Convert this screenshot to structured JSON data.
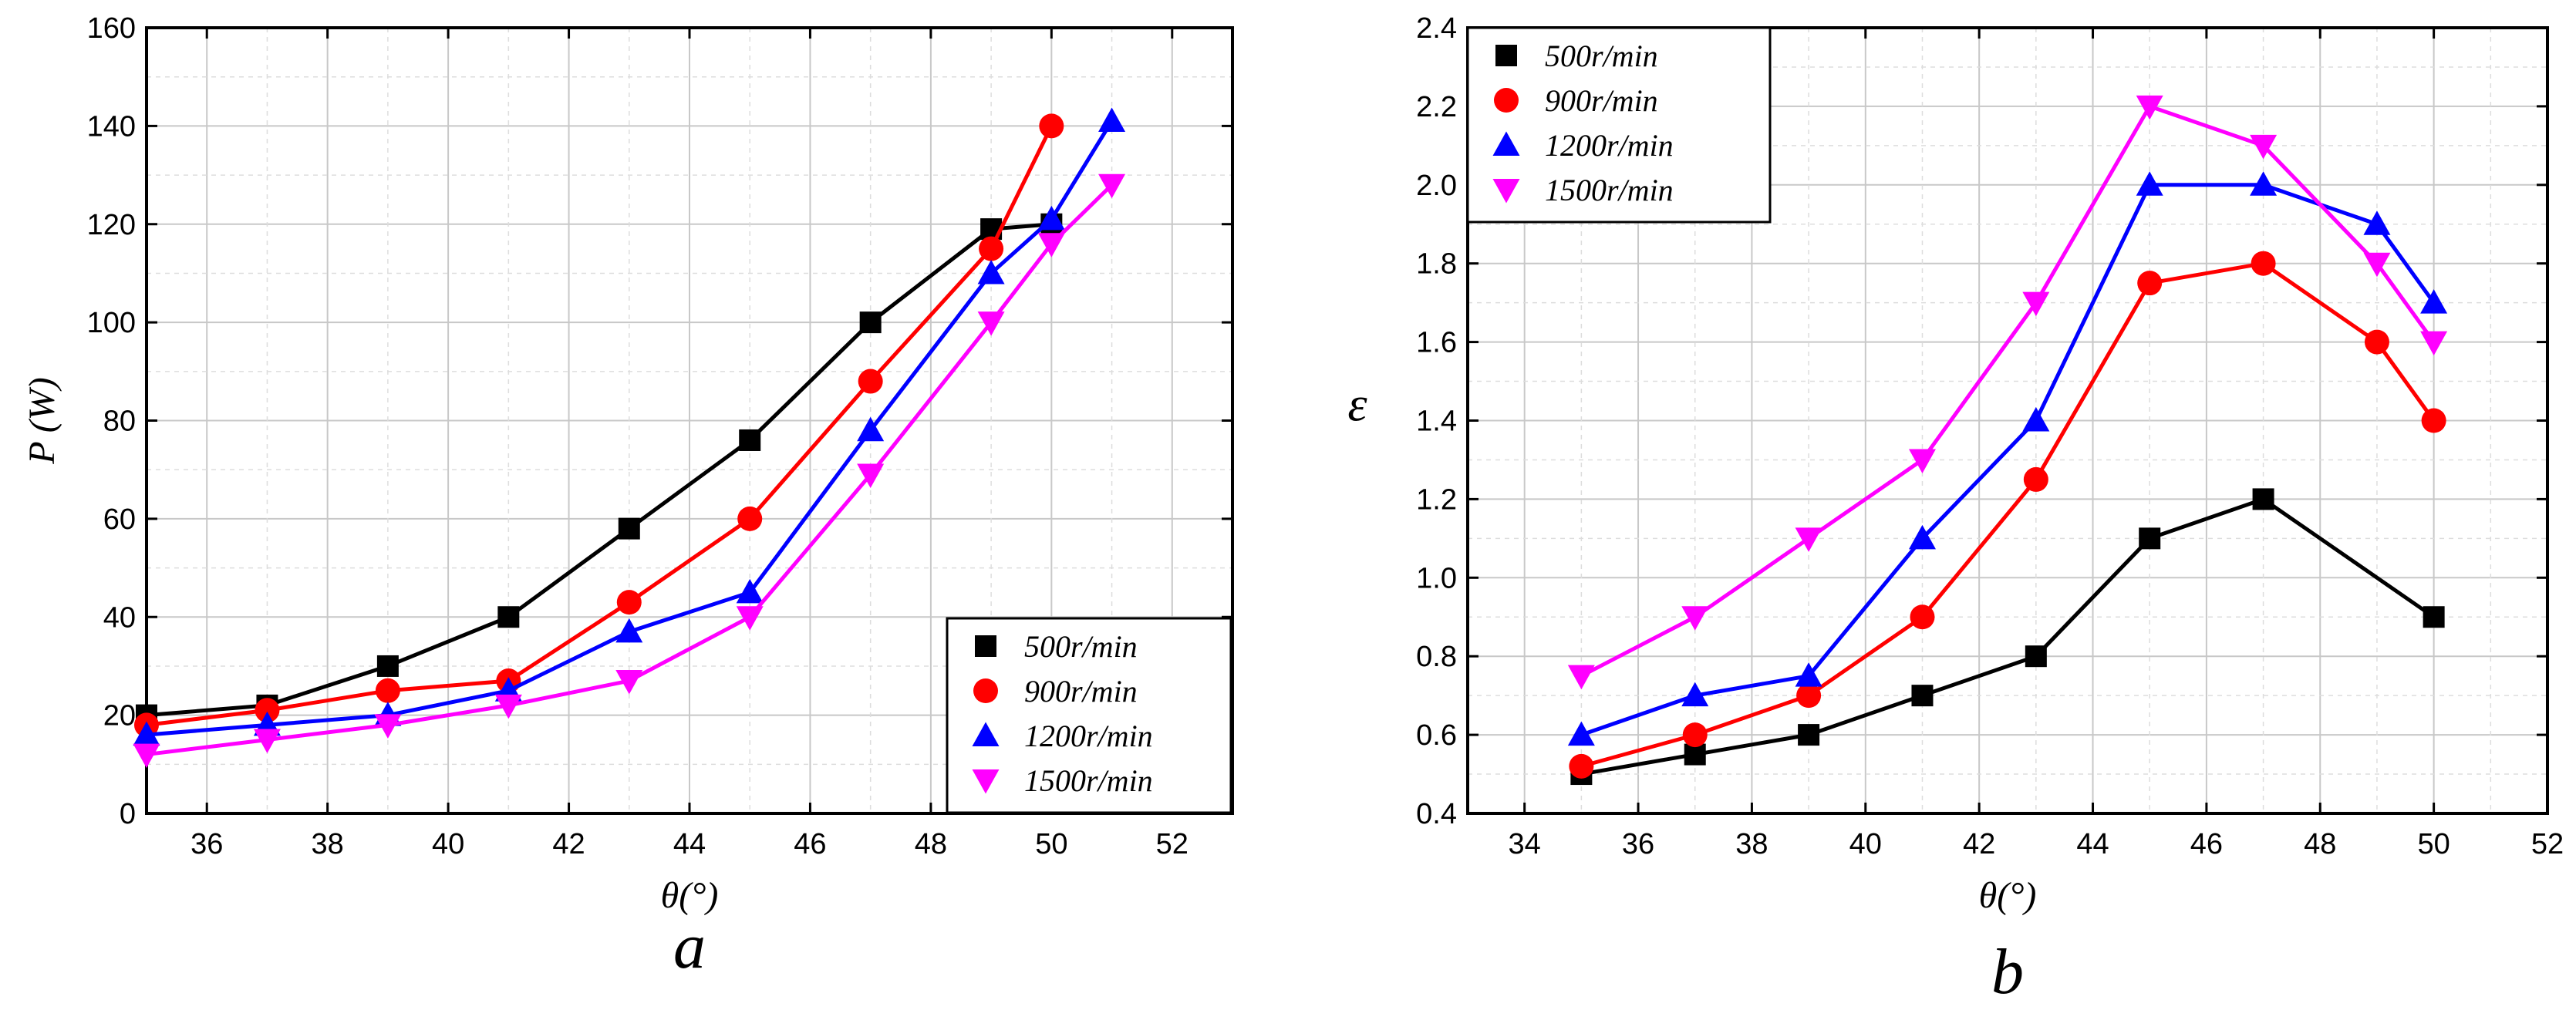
{
  "chart_data": [
    {
      "type": "line",
      "panel_label": "a",
      "xlabel": "θ(°)",
      "ylabel": "P (W)",
      "xlim": [
        35,
        53
      ],
      "ylim": [
        0,
        160
      ],
      "xticks": [
        36,
        38,
        40,
        42,
        44,
        46,
        48,
        50,
        52
      ],
      "yticks": [
        0,
        20,
        40,
        60,
        80,
        100,
        120,
        140,
        160
      ],
      "grid": true,
      "legend_position": "bottom-right",
      "series": [
        {
          "name": "500r/min",
          "color": "#000000",
          "marker": "square",
          "x": [
            35,
            37,
            39,
            41,
            43,
            45,
            47,
            49,
            50
          ],
          "y": [
            20,
            22,
            30,
            40,
            58,
            76,
            100,
            119,
            120
          ]
        },
        {
          "name": "900r/min",
          "color": "#ff0000",
          "marker": "circle",
          "x": [
            35,
            37,
            39,
            41,
            43,
            45,
            47,
            49,
            50
          ],
          "y": [
            18,
            21,
            25,
            27,
            43,
            60,
            88,
            115,
            140
          ]
        },
        {
          "name": "1200r/min",
          "color": "#0000ff",
          "marker": "triangle-up",
          "x": [
            35,
            37,
            39,
            41,
            43,
            45,
            47,
            49,
            50,
            51
          ],
          "y": [
            16,
            18,
            20,
            25,
            37,
            45,
            78,
            110,
            121,
            141
          ]
        },
        {
          "name": "1500r/min",
          "color": "#ff00ff",
          "marker": "triangle-down",
          "x": [
            35,
            37,
            39,
            41,
            43,
            45,
            47,
            49,
            50,
            51
          ],
          "y": [
            12,
            15,
            18,
            22,
            27,
            40,
            69,
            100,
            116,
            128
          ]
        }
      ]
    },
    {
      "type": "line",
      "panel_label": "b",
      "xlabel": "θ(°)",
      "ylabel": "ε",
      "xlim": [
        33,
        52
      ],
      "ylim": [
        0.4,
        2.4
      ],
      "xticks": [
        34,
        36,
        38,
        40,
        42,
        44,
        46,
        48,
        50,
        52
      ],
      "yticks": [
        0.4,
        0.6,
        0.8,
        1.0,
        1.2,
        1.4,
        1.6,
        1.8,
        2.0,
        2.2,
        2.4
      ],
      "ytick_labels": [
        "0.4",
        "0.6",
        "0.8",
        "1.0",
        "1.2",
        "1.4",
        "1.6",
        "1.8",
        "2.0",
        "2.2",
        "2.4"
      ],
      "grid": true,
      "legend_position": "top-left",
      "series": [
        {
          "name": "500r/min",
          "color": "#000000",
          "marker": "square",
          "x": [
            35,
            37,
            39,
            41,
            43,
            45,
            47,
            50
          ],
          "y": [
            0.5,
            0.55,
            0.6,
            0.7,
            0.8,
            1.1,
            1.2,
            0.9
          ]
        },
        {
          "name": "900r/min",
          "color": "#ff0000",
          "marker": "circle",
          "x": [
            35,
            37,
            39,
            41,
            43,
            45,
            47,
            49,
            50
          ],
          "y": [
            0.52,
            0.6,
            0.7,
            0.9,
            1.25,
            1.75,
            1.8,
            1.6,
            1.4
          ]
        },
        {
          "name": "1200r/min",
          "color": "#0000ff",
          "marker": "triangle-up",
          "x": [
            35,
            37,
            39,
            41,
            43,
            45,
            47,
            49,
            50
          ],
          "y": [
            0.6,
            0.7,
            0.75,
            1.1,
            1.4,
            2.0,
            2.0,
            1.9,
            1.7
          ]
        },
        {
          "name": "1500r/min",
          "color": "#ff00ff",
          "marker": "triangle-down",
          "x": [
            35,
            37,
            39,
            41,
            43,
            45,
            47,
            49,
            50
          ],
          "y": [
            0.75,
            0.9,
            1.1,
            1.3,
            1.7,
            2.2,
            2.1,
            1.8,
            1.6
          ]
        }
      ]
    }
  ]
}
